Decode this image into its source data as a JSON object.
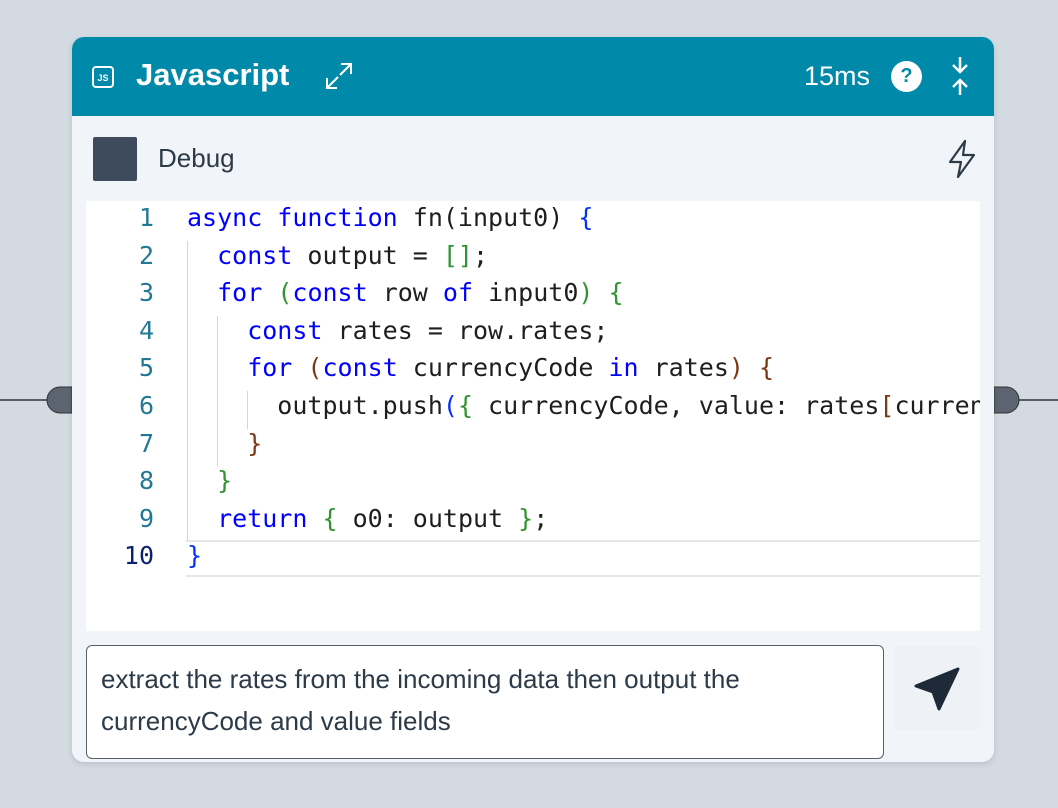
{
  "header": {
    "title": "Javascript",
    "timing": "15ms",
    "help": "?"
  },
  "debug": {
    "label": "Debug"
  },
  "code": {
    "lines": [
      {
        "number": 1,
        "tokens": [
          {
            "text": "async function",
            "color": "#0000ff"
          },
          {
            "text": " fn(input0) ",
            "color": "#1e1e1e"
          },
          {
            "text": "{",
            "color": "#0431fa"
          }
        ]
      },
      {
        "number": 2,
        "tokens": [
          {
            "text": "  const",
            "color": "#0000ff"
          },
          {
            "text": " output = ",
            "color": "#1e1e1e"
          },
          {
            "text": "[]",
            "color": "#319331"
          },
          {
            "text": ";",
            "color": "#1e1e1e"
          }
        ]
      },
      {
        "number": 3,
        "tokens": [
          {
            "text": "  for",
            "color": "#0000ff"
          },
          {
            "text": " ",
            "color": "#1e1e1e"
          },
          {
            "text": "(",
            "color": "#319331"
          },
          {
            "text": "const",
            "color": "#0000ff"
          },
          {
            "text": " row ",
            "color": "#1e1e1e"
          },
          {
            "text": "of",
            "color": "#0000ff"
          },
          {
            "text": " input0",
            "color": "#1e1e1e"
          },
          {
            "text": ")",
            "color": "#319331"
          },
          {
            "text": " ",
            "color": "#1e1e1e"
          },
          {
            "text": "{",
            "color": "#319331"
          }
        ]
      },
      {
        "number": 4,
        "tokens": [
          {
            "text": "    const",
            "color": "#0000ff"
          },
          {
            "text": " rates = row.rates;",
            "color": "#1e1e1e"
          }
        ]
      },
      {
        "number": 5,
        "tokens": [
          {
            "text": "    for",
            "color": "#0000ff"
          },
          {
            "text": " ",
            "color": "#1e1e1e"
          },
          {
            "text": "(",
            "color": "#7b3814"
          },
          {
            "text": "const",
            "color": "#0000ff"
          },
          {
            "text": " currencyCode ",
            "color": "#1e1e1e"
          },
          {
            "text": "in",
            "color": "#0000ff"
          },
          {
            "text": " rates",
            "color": "#1e1e1e"
          },
          {
            "text": ")",
            "color": "#7b3814"
          },
          {
            "text": " ",
            "color": "#1e1e1e"
          },
          {
            "text": "{",
            "color": "#7b3814"
          }
        ]
      },
      {
        "number": 6,
        "tokens": [
          {
            "text": "      output.push",
            "color": "#1e1e1e"
          },
          {
            "text": "(",
            "color": "#0431fa"
          },
          {
            "text": "{",
            "color": "#319331"
          },
          {
            "text": " currencyCode, value: rates",
            "color": "#1e1e1e"
          },
          {
            "text": "[",
            "color": "#7b3814"
          },
          {
            "text": "curren",
            "color": "#1e1e1e"
          }
        ]
      },
      {
        "number": 7,
        "tokens": [
          {
            "text": "    }",
            "color": "#7b3814"
          }
        ]
      },
      {
        "number": 8,
        "tokens": [
          {
            "text": "  }",
            "color": "#319331"
          }
        ]
      },
      {
        "number": 9,
        "tokens": [
          {
            "text": "  return",
            "color": "#0000ff"
          },
          {
            "text": " ",
            "color": "#1e1e1e"
          },
          {
            "text": "{",
            "color": "#319331"
          },
          {
            "text": " o0: output ",
            "color": "#1e1e1e"
          },
          {
            "text": "}",
            "color": "#319331"
          },
          {
            "text": ";",
            "color": "#1e1e1e"
          }
        ]
      },
      {
        "number": 10,
        "tokens": [
          {
            "text": "}",
            "color": "#0431fa"
          }
        ]
      }
    ]
  },
  "prompt": {
    "text": "extract the rates from the incoming data then output the currencyCode and value fields"
  }
}
